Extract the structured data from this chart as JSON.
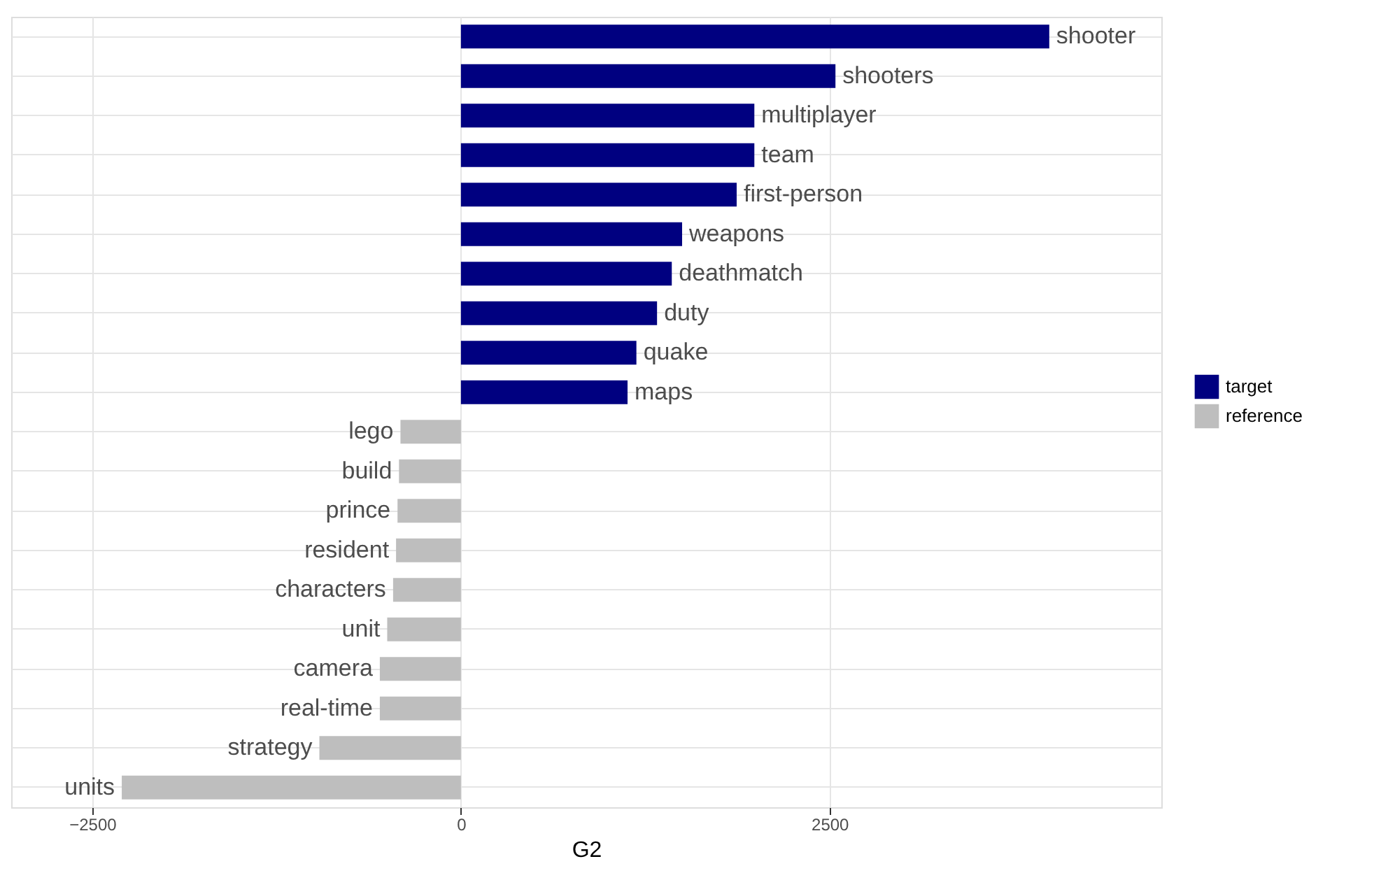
{
  "chart_data": {
    "type": "bar",
    "orientation": "horizontal",
    "xlabel": "G2",
    "categories": [
      "shooter",
      "shooters",
      "multiplayer",
      "team",
      "first-person",
      "weapons",
      "deathmatch",
      "duty",
      "quake",
      "maps",
      "lego",
      "build",
      "prince",
      "resident",
      "characters",
      "unit",
      "camera",
      "real-time",
      "strategy",
      "units"
    ],
    "series": [
      {
        "name": "target",
        "color": "#000080",
        "values": [
          3990,
          2540,
          1990,
          1990,
          1870,
          1500,
          1430,
          1330,
          1190,
          1130,
          null,
          null,
          null,
          null,
          null,
          null,
          null,
          null,
          null,
          null
        ]
      },
      {
        "name": "reference",
        "color": "#bebebe",
        "values": [
          null,
          null,
          null,
          null,
          null,
          null,
          null,
          null,
          null,
          null,
          -410,
          -420,
          -430,
          -440,
          -460,
          -500,
          -550,
          -550,
          -960,
          -2300
        ]
      }
    ],
    "xlim": [
      -3050,
      4750
    ],
    "xticks": [
      -2500,
      0,
      2500
    ],
    "grid": true,
    "legend": "right",
    "tick_labels": "x"
  }
}
